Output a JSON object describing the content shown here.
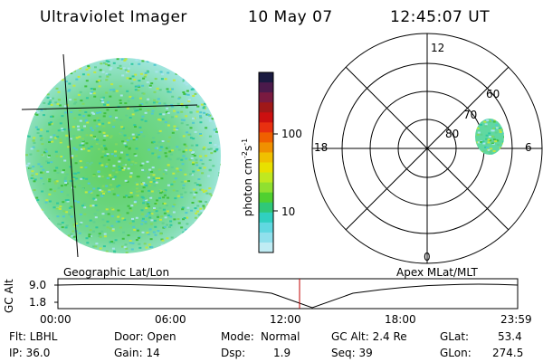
{
  "header": {
    "instrument": "Ultraviolet Imager",
    "date": "10 May 07",
    "time": "12:45:07 UT"
  },
  "colorbar": {
    "label": "photon cm",
    "label_sup1": "-2",
    "label_s": "s",
    "label_sup2": "-1",
    "ticks": [
      "100",
      "10"
    ],
    "colors": [
      "#1a1a40",
      "#4b1a4b",
      "#7a1a40",
      "#a01818",
      "#cc1010",
      "#e83010",
      "#f06000",
      "#f09000",
      "#f0c000",
      "#e8e000",
      "#c0e820",
      "#90e030",
      "#50d030",
      "#30c878",
      "#30d0c0",
      "#60d8e0",
      "#90e0ec",
      "#c0ecf4"
    ]
  },
  "polar_plot": {
    "mlt_labels": [
      "12",
      "18",
      "6",
      "0"
    ],
    "mlat_labels": [
      "60",
      "70",
      "80"
    ]
  },
  "projections": {
    "left": "Geographic Lat/Lon",
    "right": "Apex MLat/MLT"
  },
  "orbit_plot": {
    "ylabel": "GC Alt",
    "y_ticks": [
      "9.0",
      "1.8"
    ],
    "time_ticks": [
      "00:00",
      "06:00",
      "12:00",
      "18:00",
      "23:59"
    ]
  },
  "info": {
    "filter": "Flt: LBHL",
    "ip": "IP: 36.0",
    "door": "Door: Open",
    "gain": "Gain: 14",
    "mode_label": "Mode:",
    "mode_value": "Normal",
    "dsp_label": "Dsp:",
    "dsp_value": "1.9",
    "gc_alt": "GC Alt: 2.4 Re",
    "seq": "Seq: 39",
    "glat_label": "GLat:",
    "glat_value": "53.4",
    "glon_label": "GLon:",
    "glon_value": "274.5"
  }
}
